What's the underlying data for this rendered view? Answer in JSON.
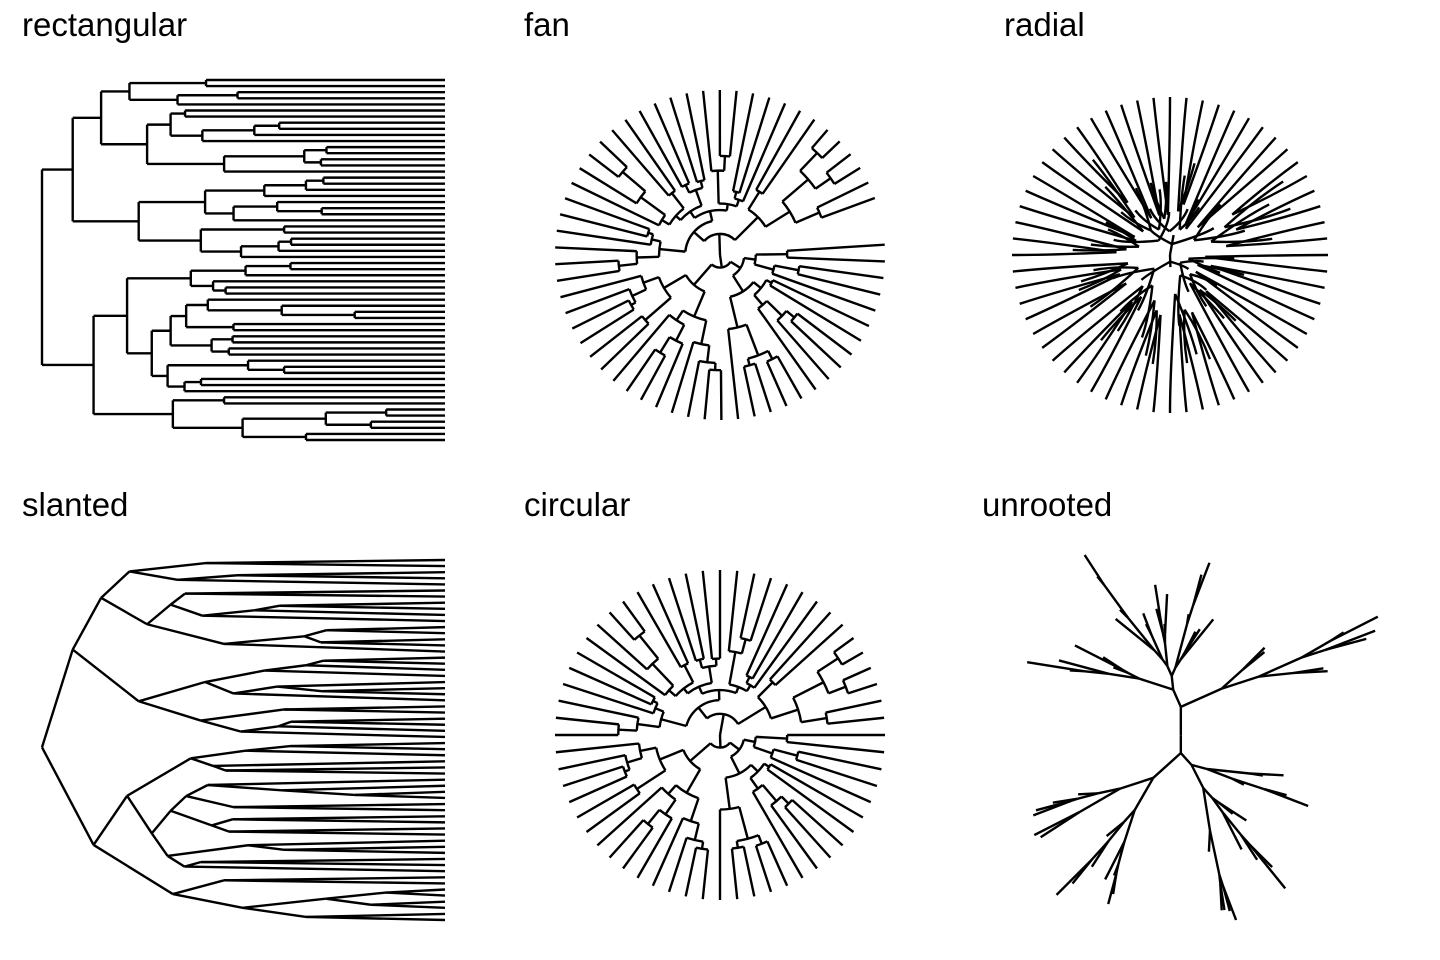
{
  "panels": [
    {
      "id": "rectangular",
      "title": "rectangular",
      "layout": "rectangular"
    },
    {
      "id": "fan",
      "title": "fan",
      "layout": "fan"
    },
    {
      "id": "radial",
      "title": "radial",
      "layout": "radial"
    },
    {
      "id": "slanted",
      "title": "slanted",
      "layout": "slanted"
    },
    {
      "id": "circular",
      "title": "circular",
      "layout": "circular"
    },
    {
      "id": "unrooted",
      "title": "unrooted",
      "layout": "unrooted"
    }
  ],
  "tree": {
    "tip_count": 60,
    "line_color": "#000000",
    "background": "#ffffff"
  }
}
